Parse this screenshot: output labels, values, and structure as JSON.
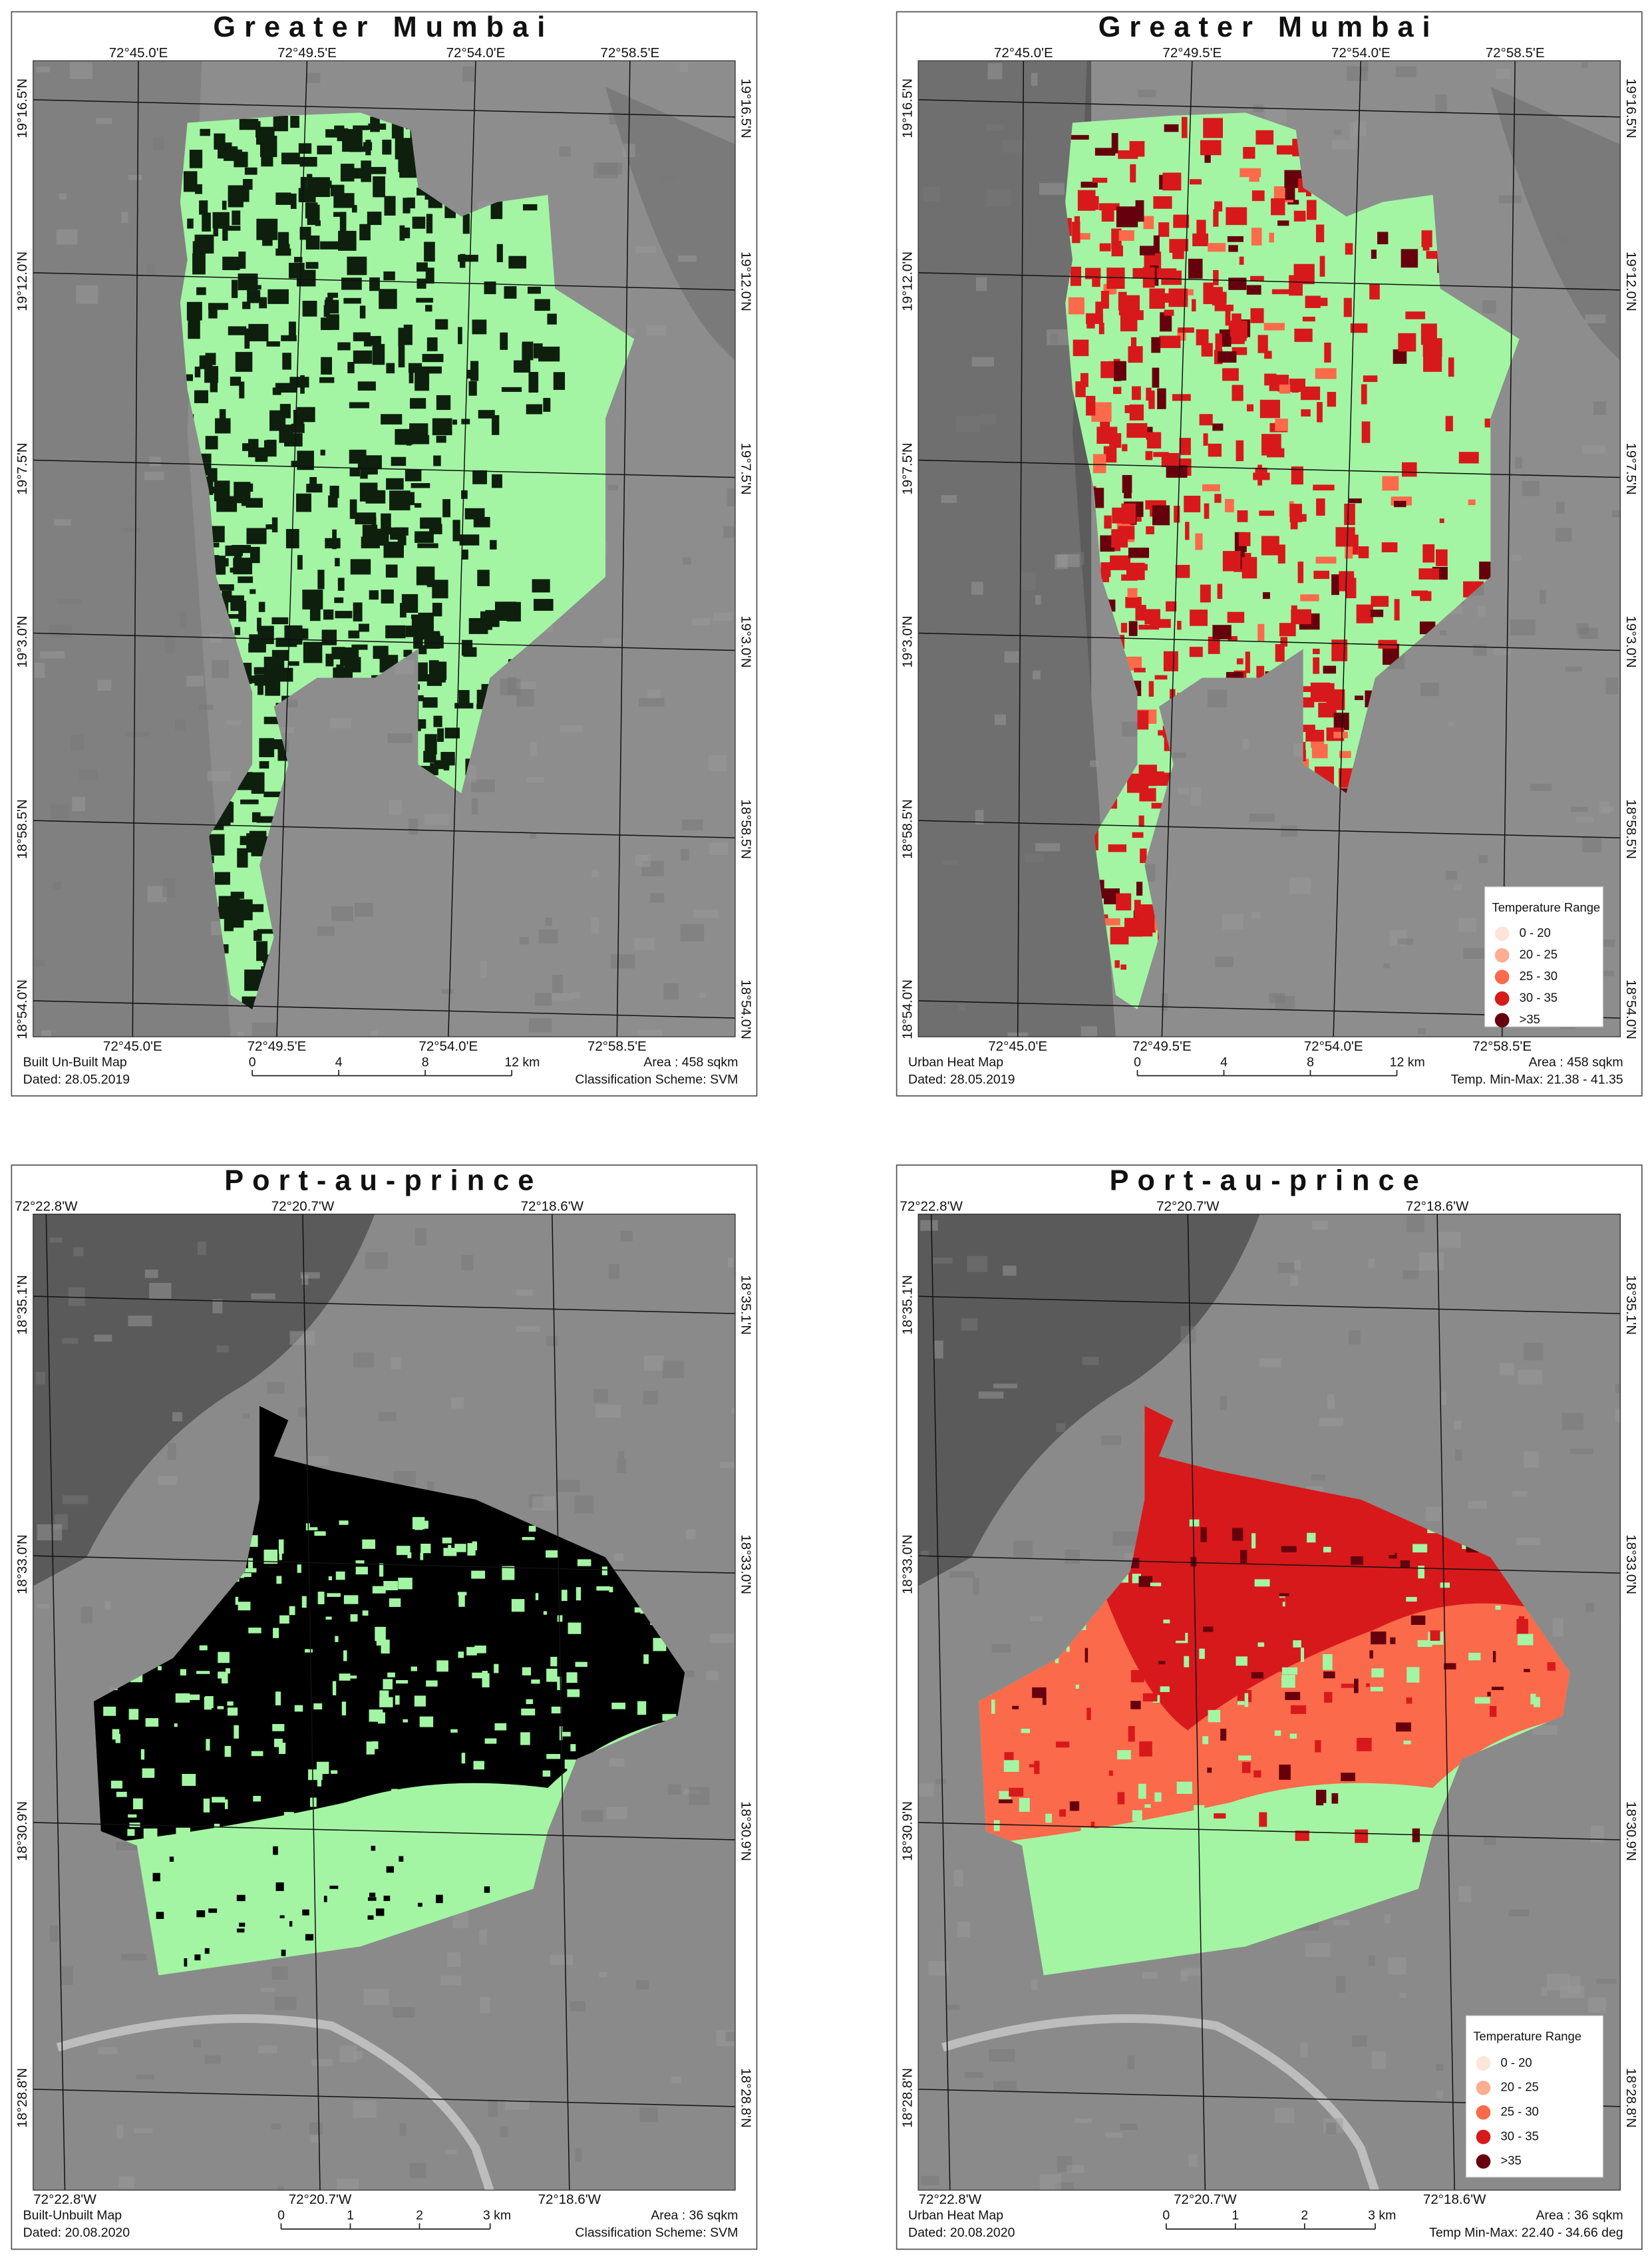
{
  "panels": [
    {
      "title": "Greater Mumbai",
      "top_labels": [
        "72°45.0'E",
        "72°49.5'E",
        "72°54.0'E",
        "72°58.5'E"
      ],
      "bottom_labels": [
        "72°45.0'E",
        "72°49.5'E",
        "72°54.0'E",
        "72°58.5'E"
      ],
      "left_labels": [
        "19°16.5'N",
        "19°12.0'N",
        "19°7.5'N",
        "19°3.0'N",
        "18°58.5'N",
        "18°54.0'N"
      ],
      "right_labels": [
        "19°16.5'N",
        "19°12.0'N",
        "19°7.5'N",
        "19°3.0'N",
        "18°58.5'N",
        "18°54.0'N"
      ],
      "map_type": "Built Un-Built Map",
      "date": "Dated: 28.05.2019",
      "scale_labels": [
        "0",
        "4",
        "8",
        "12 km"
      ],
      "area": "Area : 458 sqkm",
      "note": "Classification Scheme: SVM"
    },
    {
      "title": "Greater Mumbai",
      "top_labels": [
        "72°45.0'E",
        "72°49.5'E",
        "72°54.0'E",
        "72°58.5'E"
      ],
      "bottom_labels": [
        "72°45.0'E",
        "72°49.5'E",
        "72°54.0'E",
        "72°58.5'E"
      ],
      "left_labels": [
        "19°16.5'N",
        "19°12.0'N",
        "19°7.5'N",
        "19°3.0'N",
        "18°58.5'N",
        "18°54.0'N"
      ],
      "right_labels": [
        "19°16.5'N",
        "19°12.0'N",
        "19°7.5'N",
        "19°3.0'N",
        "18°58.5'N",
        "18°54.0'N"
      ],
      "map_type": "Urban Heat Map",
      "date": "Dated: 28.05.2019",
      "scale_labels": [
        "0",
        "4",
        "8",
        "12 km"
      ],
      "area": "Area : 458 sqkm",
      "note": "Temp. Min-Max: 21.38 - 41.35",
      "legend": {
        "title": "Temperature Range",
        "items": [
          "0 - 20",
          "20 - 25",
          "25 - 30",
          "30 - 35",
          ">35"
        ]
      }
    },
    {
      "title": "Port-au-prince",
      "top_labels": [
        "72°22.8'W",
        "72°20.7'W",
        "72°18.6'W"
      ],
      "bottom_labels": [
        "72°22.8'W",
        "72°20.7'W",
        "72°18.6'W"
      ],
      "left_labels": [
        "18°35.1'N",
        "18°33.0'N",
        "18°30.9'N",
        "18°28.8'N"
      ],
      "right_labels": [
        "18°35.1'N",
        "18°33.0'N",
        "18°30.9'N",
        "18°28.8'N"
      ],
      "map_type": "Built-Unbuilt Map",
      "date": "Dated: 20.08.2020",
      "scale_labels": [
        "0",
        "1",
        "2",
        "3 km"
      ],
      "area": "Area : 36 sqkm",
      "note": "Classification Scheme: SVM"
    },
    {
      "title": "Port-au-prince",
      "top_labels": [
        "72°22.8'W",
        "72°20.7'W",
        "72°18.6'W"
      ],
      "bottom_labels": [
        "72°22.8'W",
        "72°20.7'W",
        "72°18.6'W"
      ],
      "left_labels": [
        "18°35.1'N",
        "18°33.0'N",
        "18°30.9'N",
        "18°28.8'N"
      ],
      "right_labels": [
        "18°35.1'N",
        "18°33.0'N",
        "18°30.9'N",
        "18°28.8'N"
      ],
      "map_type": "Urban Heat Map",
      "date": "Dated: 20.08.2020",
      "scale_labels": [
        "0",
        "1",
        "2",
        "3 km"
      ],
      "area": "Area : 36 sqkm",
      "note": "Temp Min-Max: 22.40 - 34.66 deg",
      "legend": {
        "title": "Temperature Range",
        "items": [
          "0 - 20",
          "20 - 25",
          "25 - 30",
          "30 - 35",
          ">35"
        ]
      }
    }
  ]
}
